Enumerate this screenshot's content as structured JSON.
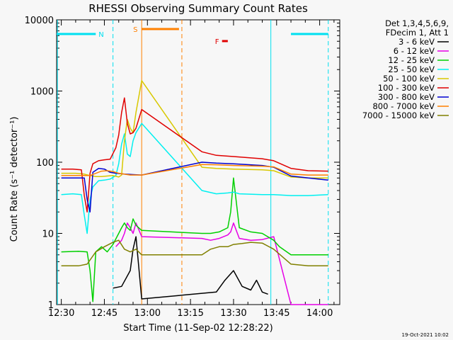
{
  "chart_data": {
    "type": "line",
    "title": "RHESSI Observing Summary Count Rates",
    "xlabel": "Start Time (11-Sep-02 12:28:22)",
    "ylabel": "Count Rate (s⁻¹ detector⁻¹)",
    "x_scale": "time",
    "x_ticks": [
      "12:30",
      "12:45",
      "13:00",
      "13:15",
      "13:30",
      "13:45",
      "14:00"
    ],
    "xlim": [
      "12:28:22",
      "14:07:00"
    ],
    "y_scale": "log",
    "ylim": [
      1,
      10000
    ],
    "y_ticks": [
      "1",
      "10",
      "100",
      "1000",
      "10000"
    ],
    "legend_header": [
      "Det 1,3,4,5,6,9,",
      "FDecim 1, Att 1"
    ],
    "legend_position": "right",
    "timestamp": "19-Oct-2021 10:02",
    "series": [
      {
        "name": "3 - 6 keV",
        "color": "#000000",
        "x": [
          "12:48",
          "12:51",
          "12:54",
          "12:55",
          "12:56",
          "12:58",
          "13:24",
          "13:27",
          "13:30",
          "13:33",
          "13:36",
          "13:38",
          "13:40",
          "13:42"
        ],
        "y": [
          1.7,
          1.8,
          3,
          6,
          9,
          1.2,
          1.5,
          2.2,
          3,
          1.8,
          1.6,
          2.2,
          1.5,
          1.4
        ]
      },
      {
        "name": "6 - 12 keV",
        "color": "#e600e6",
        "x": [
          "12:49",
          "12:51",
          "12:52",
          "12:53",
          "12:54",
          "12:55",
          "12:56",
          "12:58",
          "13:19",
          "13:22",
          "13:25",
          "13:28",
          "13:29",
          "13:30",
          "13:32",
          "13:36",
          "13:40",
          "13:44",
          "13:50",
          "13:56",
          "14:03"
        ],
        "y": [
          6.5,
          8,
          10,
          14,
          12,
          10,
          14,
          9,
          8.5,
          8,
          8.5,
          9.5,
          10.5,
          14,
          8.5,
          8,
          8.2,
          9,
          1,
          1,
          1
        ]
      },
      {
        "name": "12 - 25 keV",
        "color": "#00d000",
        "x": [
          "12:30",
          "12:36",
          "12:39",
          "12:40",
          "12:41",
          "12:42",
          "12:44",
          "12:46",
          "12:48",
          "12:50",
          "12:51",
          "12:52",
          "12:53",
          "12:54",
          "12:55",
          "12:56",
          "12:58",
          "13:19",
          "13:22",
          "13:25",
          "13:28",
          "13:29",
          "13:30",
          "13:32",
          "13:36",
          "13:40",
          "13:44",
          "13:46",
          "13:50",
          "13:55",
          "14:00",
          "14:03"
        ],
        "y": [
          5.5,
          5.6,
          5.5,
          3,
          1.1,
          5.5,
          6.5,
          5.5,
          7,
          10,
          12,
          14,
          12,
          11,
          16,
          13,
          11,
          10,
          10,
          10.5,
          12,
          20,
          60,
          12,
          10.5,
          10,
          8,
          6.5,
          5,
          5,
          5,
          5
        ]
      },
      {
        "name": "25 - 50 keV",
        "color": "#00f0f0",
        "x": [
          "12:30",
          "12:34",
          "12:37",
          "12:38",
          "12:39",
          "12:40",
          "12:41",
          "12:43",
          "12:45",
          "12:47",
          "12:49",
          "12:50",
          "12:51",
          "12:52",
          "12:53",
          "12:54",
          "12:55",
          "12:56",
          "12:58",
          "13:19",
          "13:24",
          "13:28",
          "13:30",
          "13:32",
          "13:40",
          "13:44",
          "13:50",
          "13:56",
          "14:03"
        ],
        "y": [
          35,
          36,
          35,
          18,
          10,
          30,
          45,
          55,
          56,
          58,
          65,
          95,
          180,
          250,
          130,
          120,
          200,
          260,
          350,
          40,
          36,
          37,
          38,
          36,
          35,
          35,
          34,
          34,
          35
        ]
      },
      {
        "name": "50 - 100 keV",
        "color": "#d8c800",
        "x": [
          "12:30",
          "12:35",
          "12:38",
          "12:40",
          "12:42",
          "12:44",
          "12:46",
          "12:48",
          "12:50",
          "12:51",
          "12:52",
          "12:53",
          "12:54",
          "12:55",
          "12:56",
          "12:58",
          "13:19",
          "13:24",
          "13:30",
          "13:40",
          "13:44",
          "13:50",
          "13:56",
          "14:03"
        ],
        "y": [
          70,
          70,
          68,
          65,
          63,
          63,
          64,
          65,
          62,
          66,
          200,
          400,
          300,
          260,
          500,
          1400,
          85,
          82,
          80,
          78,
          76,
          62,
          60,
          60
        ]
      },
      {
        "name": "100 - 300 keV",
        "color": "#e00000",
        "x": [
          "12:30",
          "12:34",
          "12:37",
          "12:38",
          "12:39",
          "12:40",
          "12:41",
          "12:43",
          "12:45",
          "12:47",
          "12:49",
          "12:50",
          "12:51",
          "12:52",
          "12:53",
          "12:54",
          "12:55",
          "12:56",
          "12:58",
          "13:19",
          "13:24",
          "13:30",
          "13:40",
          "13:44",
          "13:50",
          "13:56",
          "14:03"
        ],
        "y": [
          80,
          80,
          78,
          34,
          20,
          70,
          95,
          105,
          108,
          110,
          160,
          240,
          500,
          800,
          350,
          250,
          260,
          300,
          550,
          140,
          125,
          120,
          112,
          105,
          82,
          76,
          75
        ]
      },
      {
        "name": "300 - 800 keV",
        "color": "#0000d0",
        "x": [
          "12:30",
          "12:34",
          "12:38",
          "12:39",
          "12:40",
          "12:41",
          "12:43",
          "12:45",
          "12:47",
          "12:49",
          "12:52",
          "12:55",
          "12:58",
          "13:19",
          "13:24",
          "13:30",
          "13:40",
          "13:44",
          "13:50",
          "13:56",
          "14:03"
        ],
        "y": [
          60,
          60,
          60,
          30,
          20,
          72,
          82,
          80,
          72,
          70,
          68,
          67,
          66,
          100,
          97,
          95,
          90,
          85,
          64,
          60,
          56
        ]
      },
      {
        "name": "800 - 7000 keV",
        "color": "#ff8000",
        "x": [
          "12:30",
          "12:40",
          "12:44",
          "12:46",
          "12:48",
          "12:50",
          "12:54",
          "12:58",
          "13:19",
          "13:24",
          "13:30",
          "13:40",
          "13:44",
          "13:50",
          "13:56",
          "14:03"
        ],
        "y": [
          65,
          65,
          75,
          76,
          74,
          70,
          66,
          66,
          93,
          92,
          90,
          88,
          86,
          68,
          66,
          66
        ]
      },
      {
        "name": "7000 - 15000 keV",
        "color": "#808000",
        "x": [
          "12:30",
          "12:36",
          "12:39",
          "12:42",
          "12:45",
          "12:48",
          "12:50",
          "12:52",
          "12:54",
          "12:56",
          "12:58",
          "13:19",
          "13:22",
          "13:25",
          "13:28",
          "13:30",
          "13:33",
          "13:36",
          "13:40",
          "13:44",
          "13:50",
          "13:56",
          "14:03"
        ],
        "y": [
          3.5,
          3.5,
          3.7,
          5.5,
          6.5,
          7.5,
          8,
          6,
          5.5,
          6,
          5,
          5,
          6,
          6.5,
          6.5,
          7,
          7.2,
          7.5,
          7.3,
          6,
          3.7,
          3.5,
          3.5
        ]
      }
    ],
    "annotations": [
      {
        "label": "N",
        "color": "#00e0f0",
        "bars": [
          [
            "12:28:22",
            "12:42"
          ],
          [
            "13:50",
            "14:03"
          ]
        ],
        "dashed_x": [
          "12:48",
          "14:03"
        ],
        "solid_x": [
          "12:28:40",
          "13:43"
        ]
      },
      {
        "label": "S",
        "color": "#ff8000",
        "bars": [
          [
            "12:58",
            "13:11"
          ]
        ],
        "dashed_x": [
          "13:12"
        ],
        "solid_x": [
          "12:58"
        ]
      },
      {
        "label": "F",
        "color": "#e00000",
        "bars": [
          [
            "13:26",
            "13:28"
          ]
        ]
      }
    ]
  }
}
